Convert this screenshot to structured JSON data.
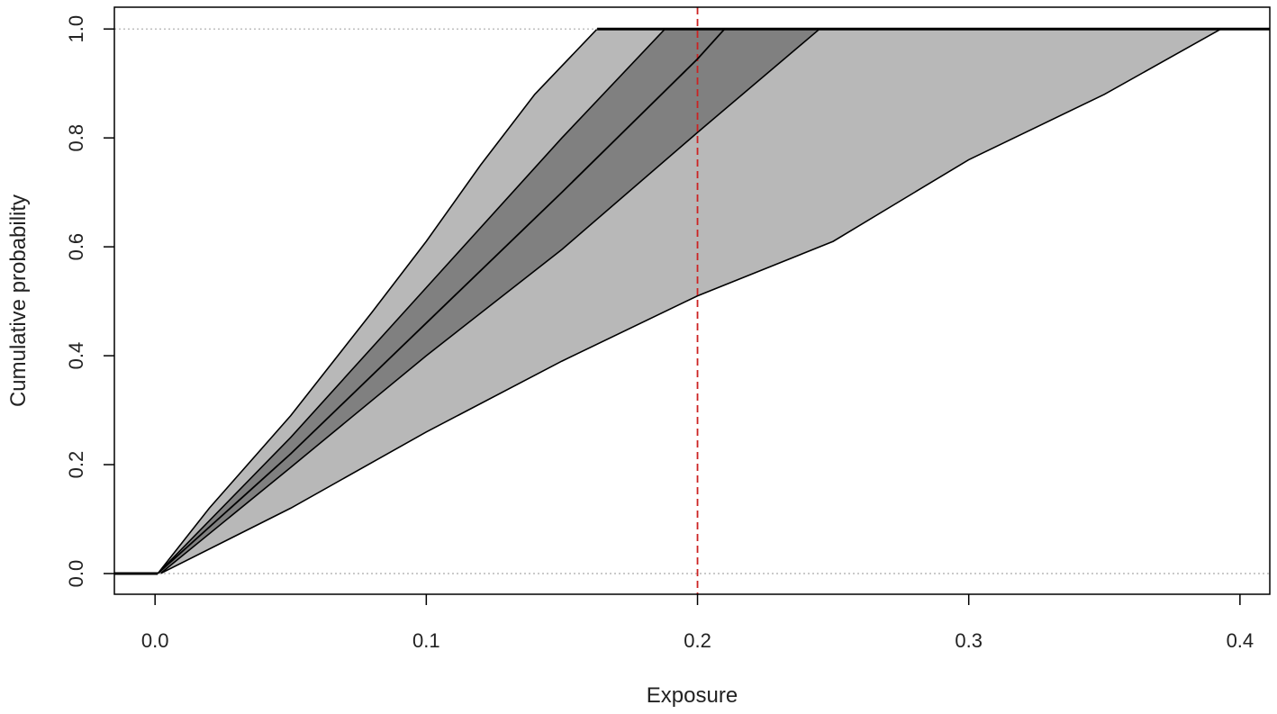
{
  "chart_data": {
    "type": "area",
    "title": "",
    "xlabel": "Exposure",
    "ylabel": "Cumulative probability",
    "xlim": [
      -0.015,
      0.411
    ],
    "ylim": [
      -0.038,
      1.04
    ],
    "x_ticks": [
      0.0,
      0.1,
      0.2,
      0.3,
      0.4
    ],
    "x_tick_labels": [
      "0.0",
      "0.1",
      "0.2",
      "0.3",
      "0.4"
    ],
    "y_ticks": [
      0.0,
      0.2,
      0.4,
      0.6,
      0.8,
      1.0
    ],
    "y_tick_labels": [
      "0.0",
      "0.2",
      "0.4",
      "0.6",
      "0.8",
      "1.0"
    ],
    "grid": false,
    "legend": "none",
    "reference_lines": [
      {
        "orientation": "horizontal",
        "y": 0.0,
        "style": "dotted",
        "color": "#aaaaaa"
      },
      {
        "orientation": "horizontal",
        "y": 1.0,
        "style": "dotted",
        "color": "#aaaaaa"
      },
      {
        "orientation": "vertical",
        "x": 0.2,
        "style": "dashed",
        "color": "#cc2222"
      }
    ],
    "bands": [
      {
        "fill": "#b8b8b8",
        "upper": [
          [
            0.001,
            0.0
          ],
          [
            0.02,
            0.12
          ],
          [
            0.05,
            0.29
          ],
          [
            0.08,
            0.48
          ],
          [
            0.1,
            0.61
          ],
          [
            0.12,
            0.75
          ],
          [
            0.14,
            0.88
          ],
          [
            0.163,
            1.0
          ]
        ],
        "lower": [
          [
            0.002,
            0.0
          ],
          [
            0.05,
            0.12
          ],
          [
            0.1,
            0.26
          ],
          [
            0.15,
            0.39
          ],
          [
            0.2,
            0.51
          ],
          [
            0.25,
            0.61
          ],
          [
            0.3,
            0.76
          ],
          [
            0.35,
            0.88
          ],
          [
            0.393,
            1.0
          ]
        ]
      },
      {
        "fill": "#808080",
        "upper": [
          [
            0.001,
            0.0
          ],
          [
            0.05,
            0.25
          ],
          [
            0.1,
            0.525
          ],
          [
            0.15,
            0.8
          ],
          [
            0.188,
            1.0
          ]
        ],
        "lower": [
          [
            0.002,
            0.0
          ],
          [
            0.05,
            0.195
          ],
          [
            0.1,
            0.4
          ],
          [
            0.15,
            0.595
          ],
          [
            0.2,
            0.81
          ],
          [
            0.245,
            1.0
          ]
        ]
      }
    ],
    "series": [
      {
        "color": "#000000",
        "x": [
          0.001,
          0.05,
          0.1,
          0.15,
          0.2,
          0.21
        ],
        "y": [
          0.0,
          0.22,
          0.46,
          0.7,
          0.945,
          1.0
        ]
      }
    ],
    "flat_segments": [
      {
        "x": [
          -0.015,
          0.001
        ],
        "y": 0.0
      },
      {
        "x": [
          0.163,
          0.411
        ],
        "y": 1.0
      }
    ]
  }
}
